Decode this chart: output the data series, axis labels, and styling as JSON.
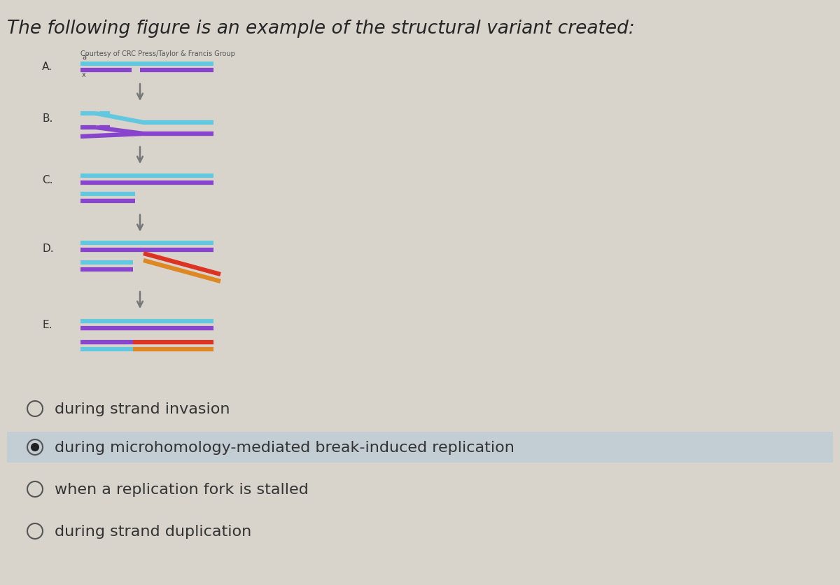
{
  "title_part1": "The following figure is an example of the ",
  "title_part2": "structural variant created:",
  "title_fontsize": 19,
  "courtesy_text": "Courtesy of CRC Press/Taylor & Francis Group",
  "background_color": "#d8d4cc",
  "labels": [
    "A.",
    "B.",
    "C.",
    "D.",
    "E."
  ],
  "options": [
    {
      "text": "during strand invasion",
      "selected": false
    },
    {
      "text": "during microhomology-mediated break-induced replication",
      "selected": true
    },
    {
      "text": "when a replication fork is stalled",
      "selected": false
    },
    {
      "text": "during strand duplication",
      "selected": false
    }
  ],
  "colors": {
    "cyan": "#62c8e0",
    "purple": "#8844cc",
    "red": "#dd3322",
    "orange": "#dd8822",
    "arrow": "#777777",
    "label": "#333333",
    "option_text": "#333333",
    "selected_bg": "#bcccd8"
  }
}
